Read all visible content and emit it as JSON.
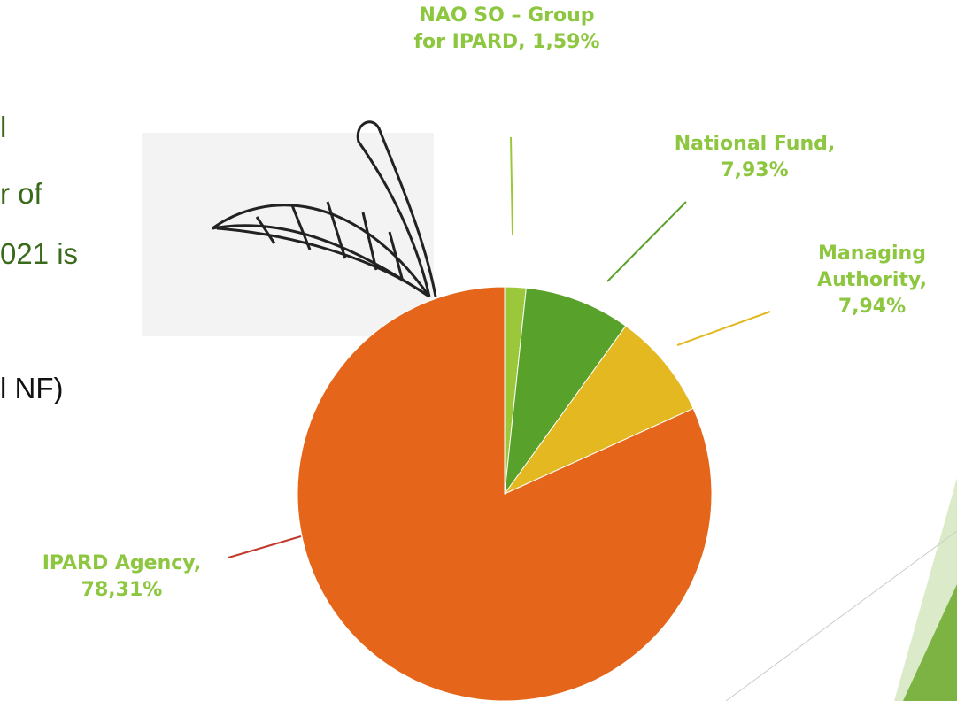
{
  "chart_data": {
    "type": "pie",
    "categories": [
      "NAO SO – Group for IPARD",
      "National Fund",
      "Managing Authority",
      "IPARD Agency"
    ],
    "values": [
      1.59,
      7.93,
      7.94,
      78.31
    ],
    "value_labels": [
      "1,59%",
      "7,93%",
      "7,94%",
      "78,31%"
    ],
    "label_separator": ",",
    "colors": [
      "#9bc83a",
      "#58a12a",
      "#e3b821",
      "#e5661a"
    ]
  },
  "background_text": [
    "l",
    "r of",
    "021 is",
    "l NF)"
  ]
}
